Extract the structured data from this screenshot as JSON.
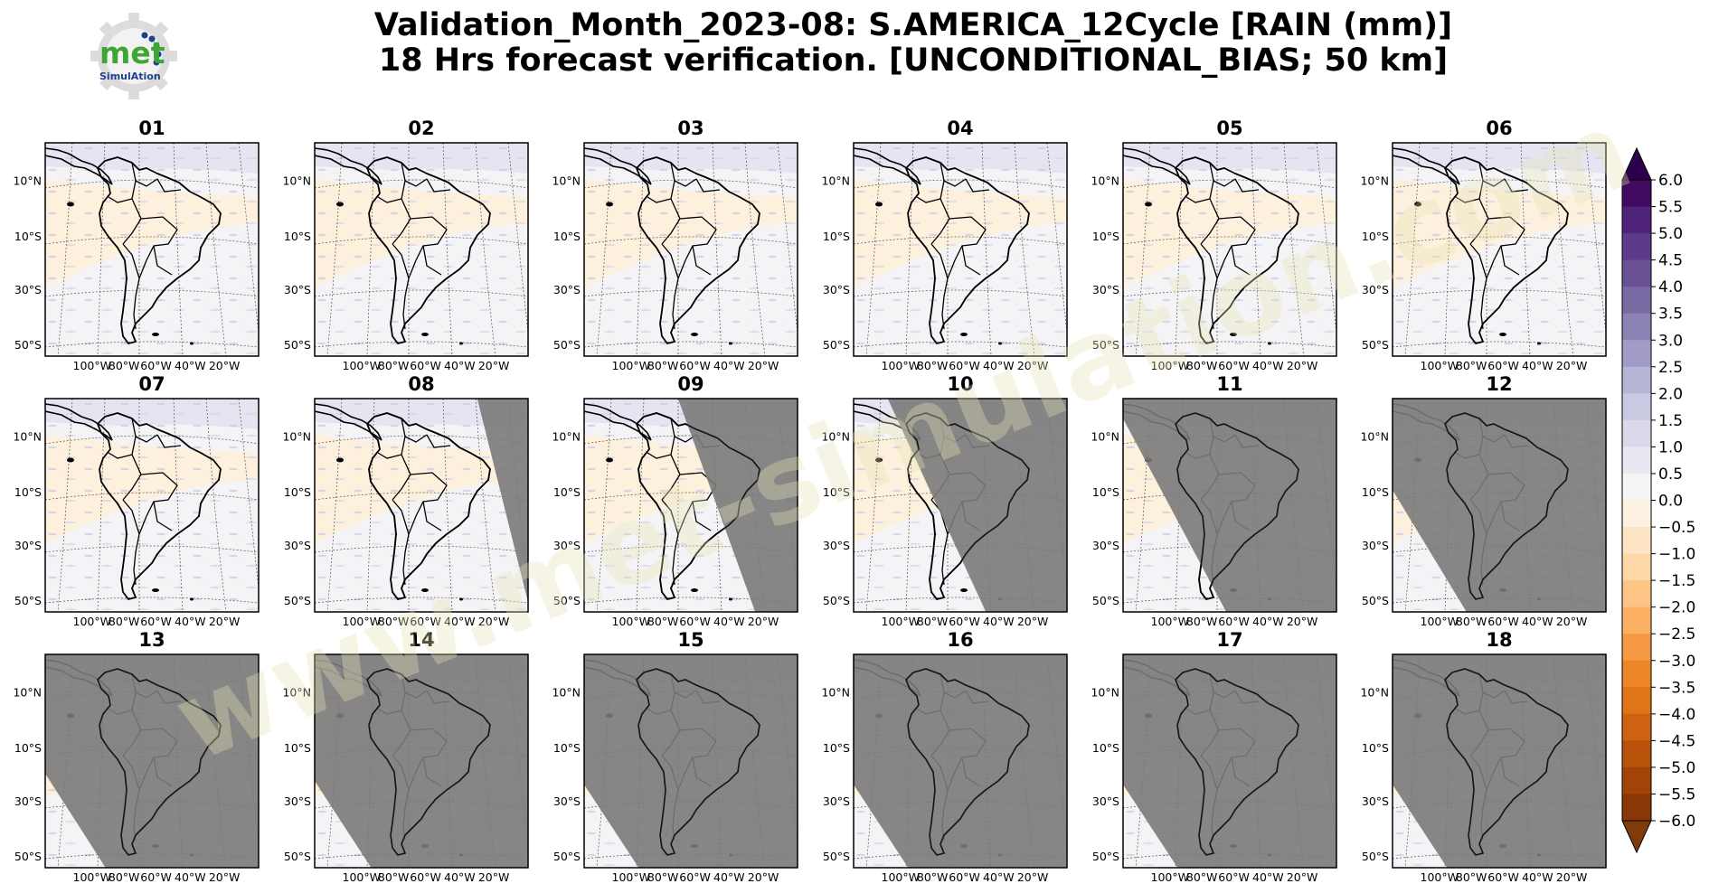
{
  "title": {
    "line1": "Validation_Month_2023-08: S.AMERICA_12Cycle [RAIN (mm)]",
    "line2": "18 Hrs forecast verification. [UNCONDITIONAL_BIAS; 50 km]"
  },
  "logo": {
    "text": "met",
    "sub": "SimulAtion"
  },
  "watermark": "www.met-simulation.com",
  "panels": [
    {
      "label": "01",
      "shade": 0
    },
    {
      "label": "02",
      "shade": 0
    },
    {
      "label": "03",
      "shade": 0
    },
    {
      "label": "04",
      "shade": 0
    },
    {
      "label": "05",
      "shade": 0
    },
    {
      "label": "06",
      "shade": 0
    },
    {
      "label": "07",
      "shade": 0
    },
    {
      "label": "08",
      "shade": 0.17
    },
    {
      "label": "09",
      "shade": 0.4
    },
    {
      "label": "10",
      "shade": 0.6
    },
    {
      "label": "11",
      "shade": 0.75
    },
    {
      "label": "12",
      "shade": 0.9
    },
    {
      "label": "13",
      "shade": 0.97
    },
    {
      "label": "14",
      "shade": 0.99
    },
    {
      "label": "15",
      "shade": 1.0
    },
    {
      "label": "16",
      "shade": 1.0
    },
    {
      "label": "17",
      "shade": 1.0
    },
    {
      "label": "18",
      "shade": 1.0
    }
  ],
  "lat_ticks": [
    "10°N",
    "10°S",
    "30°S",
    "50°S"
  ],
  "lon_ticks": [
    "100°W",
    "80°W",
    "60°W",
    "40°W",
    "20°W"
  ],
  "colorbar": {
    "ticks": [
      "6.0",
      "5.5",
      "5.0",
      "4.5",
      "4.0",
      "3.5",
      "3.0",
      "2.5",
      "2.0",
      "1.5",
      "1.0",
      "0.5",
      "0.0",
      "−0.5",
      "−1.0",
      "−1.5",
      "−2.0",
      "−2.5",
      "−3.0",
      "−3.5",
      "−4.0",
      "−4.5",
      "−5.0",
      "−5.5",
      "−6.0"
    ],
    "colors": [
      "#3f0a60",
      "#4f237a",
      "#5d3a8a",
      "#6a5196",
      "#7a6aa4",
      "#8c82b4",
      "#a19cc6",
      "#b7b5d6",
      "#cac9e2",
      "#dad9ec",
      "#e8e8f3",
      "#f5f5f5",
      "#fdf1e1",
      "#fde4c5",
      "#fdd7a6",
      "#fdc585",
      "#fbb064",
      "#f59a43",
      "#ec8629",
      "#df7418",
      "#cd6210",
      "#b9520b",
      "#a24407",
      "#8a3705"
    ],
    "over_color": "#2d004b",
    "under_color": "#7f3b08"
  },
  "colors": {
    "land_outline": "#000000",
    "background_field": "#f4f4f6",
    "positive_tint": "#d8d8ee",
    "negative_tint": "#fdf0dc",
    "night_shade": "#7a7a7a"
  }
}
